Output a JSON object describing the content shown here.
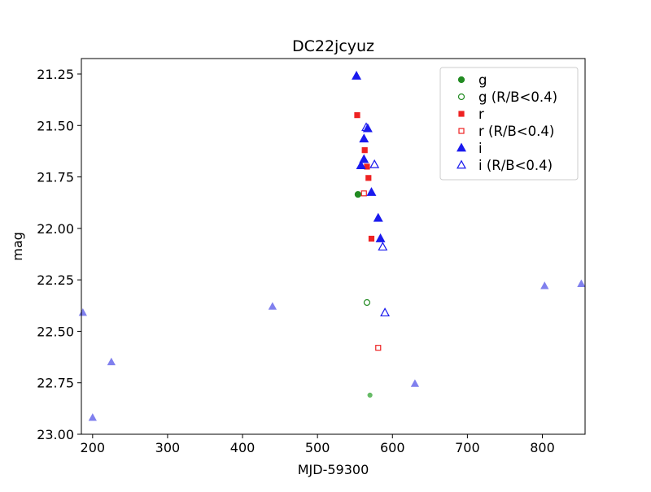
{
  "chart_data": {
    "type": "scatter",
    "title": "DC22jcyuz",
    "xlabel": "MJD-59300",
    "ylabel": "mag",
    "xlim": [
      185,
      857
    ],
    "ylim": [
      23.0,
      21.175
    ],
    "y_inverted": true,
    "grid": false,
    "legend_position": "top-right",
    "xticks": [
      200,
      300,
      400,
      500,
      600,
      700,
      800
    ],
    "yticks": [
      21.25,
      21.5,
      21.75,
      22.0,
      22.25,
      22.5,
      22.75,
      23.0
    ],
    "ytick_labels": [
      "21.25",
      "21.50",
      "21.75",
      "22.00",
      "22.25",
      "22.50",
      "22.75",
      "23.00"
    ],
    "series": [
      {
        "name": "g",
        "color": "#228b22",
        "marker": "circle",
        "filled": true,
        "points": [
          [
            554,
            21.835
          ]
        ]
      },
      {
        "name": "g (R/B<0.4)",
        "color": "#228b22",
        "marker": "circle",
        "filled": false,
        "points": [
          [
            566,
            22.36
          ]
        ]
      },
      {
        "name": "r",
        "color": "#ee2222",
        "marker": "square",
        "filled": true,
        "points": [
          [
            553,
            21.45
          ],
          [
            563,
            21.62
          ],
          [
            566,
            21.7
          ],
          [
            568,
            21.755
          ],
          [
            572,
            22.05
          ]
        ]
      },
      {
        "name": "r (R/B<0.4)",
        "color": "#ee2222",
        "marker": "square",
        "filled": false,
        "points": [
          [
            562,
            21.83
          ],
          [
            581,
            22.58
          ]
        ]
      },
      {
        "name": "i",
        "color": "#1a1aee",
        "marker": "triangle",
        "filled": true,
        "points": [
          [
            552,
            21.26
          ],
          [
            567,
            21.515
          ],
          [
            562,
            21.565
          ],
          [
            562,
            21.665
          ],
          [
            558,
            21.695
          ],
          [
            572,
            21.825
          ],
          [
            581,
            21.95
          ],
          [
            584,
            22.05
          ]
        ]
      },
      {
        "name": "i (R/B<0.4)",
        "color": "#1a1aee",
        "marker": "triangle",
        "filled": false,
        "points": [
          [
            565,
            21.51
          ],
          [
            576,
            21.69
          ],
          [
            587,
            22.09
          ],
          [
            590,
            22.41
          ]
        ]
      }
    ],
    "faint_series": [
      {
        "color": "#8080ee",
        "marker": "triangle",
        "points": [
          [
            187,
            22.41
          ],
          [
            200,
            22.92
          ],
          [
            225,
            22.65
          ],
          [
            440,
            22.38
          ],
          [
            630,
            22.755
          ],
          [
            803,
            22.28
          ],
          [
            852,
            22.27
          ]
        ]
      },
      {
        "color": "#66bb66",
        "marker": "circle",
        "points": [
          [
            570,
            22.81
          ]
        ]
      }
    ]
  }
}
